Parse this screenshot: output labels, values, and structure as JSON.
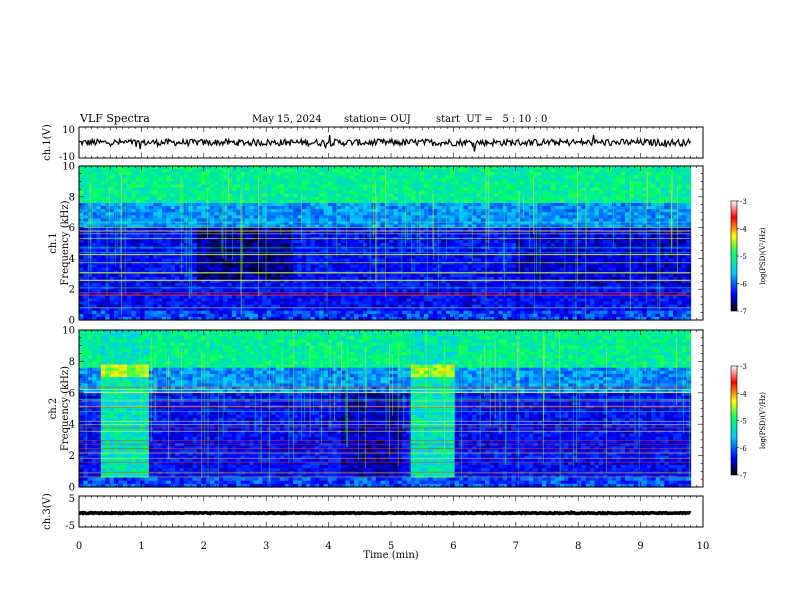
{
  "header": {
    "title": "VLF Spectra",
    "date": "May 15, 2024",
    "station": "station= OUJ",
    "start": "start  UT =   5 : 10 : 0"
  },
  "chart_data": {
    "type": "heatmap",
    "x": {
      "label": "Time  (min)",
      "lim": [
        0,
        10
      ],
      "ticks": [
        "0",
        "1",
        "2",
        "3",
        "4",
        "5",
        "6",
        "7",
        "8",
        "9",
        "10"
      ]
    },
    "panels": [
      {
        "id": "ch1-waveform",
        "type": "line",
        "ylabel": "ch.1(V)",
        "ylim": [
          -10,
          10
        ],
        "yticks": [
          "10",
          "-10"
        ],
        "baseline": 0,
        "data_end_min": 9.8
      },
      {
        "id": "ch1-spectrogram",
        "type": "heatmap",
        "ylabel_top": "ch.1",
        "ylabel": "Frequency (kHz)",
        "ylim": [
          0,
          10
        ],
        "yticks": [
          "0",
          "2",
          "4",
          "6",
          "8",
          "10"
        ],
        "data_end_min": 9.8,
        "segments_min": [
          [
            0,
            1.9
          ],
          [
            1.9,
            3.4
          ],
          [
            3.4,
            4.1
          ],
          [
            4.1,
            7.0
          ],
          [
            7.0,
            9.8
          ]
        ]
      },
      {
        "id": "ch2-spectrogram",
        "type": "heatmap",
        "ylabel_top": "ch.2",
        "ylabel": "Frequency (kHz)",
        "ylim": [
          0,
          10
        ],
        "yticks": [
          "0",
          "2",
          "4",
          "6",
          "8",
          "10"
        ],
        "data_end_min": 9.8,
        "bright_blocks_min": [
          [
            0.35,
            1.1
          ],
          [
            5.3,
            6.0
          ]
        ]
      },
      {
        "id": "ch3-waveform",
        "type": "line",
        "ylabel": "ch.3(V)",
        "ylim": [
          -5,
          5
        ],
        "yticks": [
          "5",
          "-5"
        ],
        "baseline": -0.5,
        "data_end_min": 9.8
      }
    ],
    "colorbar": {
      "label": "log(PSD)(V²/Hz)",
      "range": [
        -7,
        -3
      ],
      "ticks": [
        "-3",
        "-4",
        "-5",
        "-6",
        "-7"
      ],
      "colors": [
        "#000000",
        "#0000ff",
        "#00c8ff",
        "#00ff64",
        "#ffff00",
        "#ff0000",
        "#ffffff"
      ]
    }
  }
}
